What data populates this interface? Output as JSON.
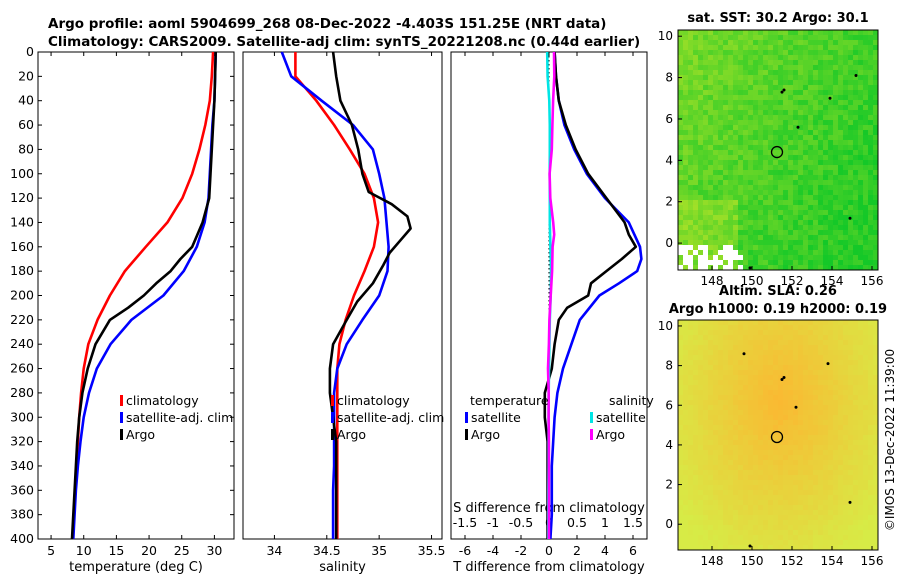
{
  "header": {
    "title_line1": "Argo profile: aoml 5904699_268 08-Dec-2022 -4.403S 151.25E (NRT data)",
    "title_line2": "Climatology: CARS2009. Satellite-adj clim: synTS_20221208.nc (0.44d earlier)"
  },
  "colors": {
    "climatology": "#ff0000",
    "satellite": "#0000ff",
    "argo": "#000000",
    "sal_satellite": "#00e5e5",
    "sal_argo": "#ff00ff"
  },
  "chart_data": [
    {
      "type": "line",
      "id": "temperature",
      "xlabel": "temperature (deg C)",
      "xlim": [
        3,
        33
      ],
      "ylim": [
        400,
        0
      ],
      "xticks": [
        5,
        10,
        15,
        20,
        25,
        30
      ],
      "yticks": [
        0,
        20,
        40,
        60,
        80,
        100,
        120,
        140,
        160,
        180,
        200,
        220,
        240,
        260,
        280,
        300,
        320,
        340,
        360,
        380,
        400
      ],
      "legend": [
        "climatology",
        "satellite-adj. clim",
        "Argo"
      ],
      "series": [
        {
          "name": "climatology",
          "color": "#ff0000",
          "depth": [
            0,
            20,
            40,
            60,
            80,
            100,
            120,
            140,
            160,
            180,
            200,
            220,
            240,
            260,
            280,
            300,
            320,
            340,
            360,
            380,
            400
          ],
          "values": [
            29.8,
            29.6,
            29.3,
            28.6,
            27.7,
            26.6,
            25.1,
            22.8,
            19.5,
            16.3,
            14.0,
            12.1,
            10.7,
            10.0,
            9.6,
            9.3,
            9.1,
            8.9,
            8.7,
            8.5,
            8.3
          ]
        },
        {
          "name": "satellite-adj. clim",
          "color": "#0000ff",
          "depth": [
            0,
            20,
            40,
            60,
            80,
            100,
            120,
            140,
            160,
            180,
            200,
            220,
            240,
            260,
            280,
            300,
            320,
            340,
            360,
            380,
            400
          ],
          "values": [
            30.2,
            30.1,
            30.0,
            29.7,
            29.5,
            29.3,
            29.1,
            28.5,
            27.3,
            25.3,
            22.2,
            17.3,
            14.1,
            12.0,
            10.8,
            10.0,
            9.5,
            9.1,
            8.8,
            8.6,
            8.4
          ]
        },
        {
          "name": "Argo",
          "color": "#000000",
          "depth": [
            0,
            20,
            40,
            60,
            80,
            100,
            120,
            140,
            150,
            160,
            170,
            180,
            190,
            200,
            210,
            220,
            240,
            260,
            280,
            300,
            320,
            340,
            360,
            380,
            400
          ],
          "values": [
            30.2,
            30.1,
            30.0,
            29.8,
            29.6,
            29.4,
            29.2,
            28.2,
            27.4,
            26.6,
            24.8,
            23.3,
            21.1,
            19.2,
            16.8,
            14.0,
            11.8,
            10.6,
            9.8,
            9.3,
            9.0,
            8.8,
            8.6,
            8.4,
            8.2
          ]
        }
      ]
    },
    {
      "type": "line",
      "id": "salinity",
      "xlabel": "salinity",
      "xlim": [
        33.7,
        35.6
      ],
      "ylim": [
        400,
        0
      ],
      "xticks": [
        34,
        34.5,
        35,
        35.5
      ],
      "xticklabels": [
        "34",
        "34.5",
        "35",
        "35.5"
      ],
      "legend": [
        "climatology",
        "satellite-adj. clim",
        "Argo"
      ],
      "series": [
        {
          "name": "climatology",
          "color": "#ff0000",
          "depth": [
            0,
            20,
            40,
            60,
            80,
            100,
            120,
            140,
            160,
            180,
            200,
            220,
            240,
            260,
            280,
            300,
            320,
            340,
            360,
            380,
            400
          ],
          "values": [
            34.2,
            34.2,
            34.4,
            34.57,
            34.72,
            34.86,
            34.95,
            34.99,
            34.95,
            34.86,
            34.76,
            34.68,
            34.62,
            34.6,
            34.6,
            34.6,
            34.6,
            34.6,
            34.6,
            34.6,
            34.6
          ]
        },
        {
          "name": "satellite-adj. clim",
          "color": "#0000ff",
          "depth": [
            0,
            20,
            40,
            60,
            80,
            100,
            120,
            140,
            160,
            180,
            200,
            220,
            240,
            260,
            280,
            300,
            320,
            340,
            360,
            380,
            400
          ],
          "values": [
            34.07,
            34.16,
            34.45,
            34.75,
            34.94,
            35.0,
            35.05,
            35.07,
            35.09,
            35.08,
            35.0,
            34.84,
            34.69,
            34.6,
            34.57,
            34.57,
            34.57,
            34.57,
            34.56,
            34.56,
            34.56
          ]
        },
        {
          "name": "Argo",
          "color": "#000000",
          "depth": [
            0,
            20,
            40,
            60,
            80,
            100,
            115,
            125,
            135,
            145,
            155,
            165,
            175,
            190,
            205,
            220,
            240,
            260,
            280,
            300,
            320,
            340,
            360,
            380,
            400
          ],
          "values": [
            34.56,
            34.59,
            34.63,
            34.74,
            34.8,
            34.84,
            34.9,
            35.12,
            35.27,
            35.3,
            35.2,
            35.1,
            35.04,
            34.94,
            34.79,
            34.69,
            34.56,
            34.53,
            34.53,
            34.56,
            34.59,
            34.59,
            34.59,
            34.59,
            34.59
          ]
        }
      ]
    },
    {
      "type": "line",
      "id": "difference",
      "xlabel": "T difference from climatology",
      "xlabel_top": "S difference from climatology",
      "xlim": [
        -7,
        7
      ],
      "ylim": [
        400,
        0
      ],
      "xticks": [
        -6,
        -4,
        -2,
        0,
        2,
        4,
        6
      ],
      "top_ticklabels": [
        "-1.5",
        "-1",
        "-0.5",
        "0",
        "0.5",
        "1",
        "1.5"
      ],
      "legend_left_title": "temperature",
      "legend_right_title": "salinity",
      "legend": [
        "satellite",
        "Argo",
        "satellite",
        "Argo"
      ],
      "series": [
        {
          "name": "T satellite",
          "color": "#0000ff",
          "depth": [
            0,
            20,
            40,
            60,
            80,
            100,
            120,
            140,
            160,
            170,
            180,
            190,
            200,
            220,
            240,
            260,
            280,
            300,
            320,
            340,
            360,
            380,
            400
          ],
          "values": [
            0.4,
            0.5,
            0.7,
            1.1,
            1.8,
            2.7,
            4.0,
            5.7,
            6.5,
            6.6,
            6.3,
            5.0,
            3.6,
            2.2,
            1.6,
            1.0,
            0.6,
            0.4,
            0.3,
            0.2,
            0.2,
            0.2,
            0.1
          ]
        },
        {
          "name": "T Argo",
          "color": "#000000",
          "depth": [
            0,
            20,
            40,
            60,
            80,
            100,
            120,
            140,
            150,
            160,
            170,
            180,
            190,
            200,
            210,
            220,
            240,
            260,
            280,
            300,
            320,
            340,
            360,
            380,
            400
          ],
          "values": [
            0.4,
            0.5,
            0.7,
            1.2,
            1.9,
            2.8,
            4.1,
            5.4,
            5.7,
            6.2,
            5.2,
            4.1,
            3.0,
            2.8,
            1.3,
            0.7,
            0.4,
            0.2,
            -0.3,
            -0.3,
            -0.1,
            -0.1,
            -0.1,
            -0.1,
            -0.1
          ]
        },
        {
          "name": "S satellite",
          "color": "#00e5e5",
          "depth": [
            0,
            20,
            40,
            60,
            80,
            100,
            120,
            140,
            160,
            180,
            200,
            220,
            240,
            260,
            280,
            300,
            320,
            340,
            360,
            380,
            400
          ],
          "values": [
            -0.13,
            -0.1,
            0.02,
            0.06,
            0.06,
            0.05,
            0.06,
            0.06,
            0.1,
            0.14,
            0.12,
            0.06,
            0.03,
            0.0,
            -0.02,
            -0.03,
            -0.03,
            -0.03,
            -0.04,
            -0.04,
            -0.04
          ]
        },
        {
          "name": "S Argo",
          "color": "#ff00ff",
          "depth": [
            0,
            20,
            40,
            60,
            80,
            100,
            120,
            140,
            150,
            160,
            180,
            200,
            220,
            240,
            260,
            280,
            300,
            320,
            340,
            360,
            380,
            400
          ],
          "values": [
            0.36,
            0.38,
            0.29,
            0.24,
            0.2,
            0.04,
            0.09,
            0.3,
            0.37,
            0.26,
            0.22,
            0.12,
            0.03,
            -0.01,
            -0.07,
            -0.02,
            -0.03,
            -0.01,
            -0.01,
            -0.01,
            -0.01,
            -0.01
          ]
        }
      ]
    },
    {
      "type": "heatmap",
      "id": "sst_map",
      "title": "sat. SST: 30.2 Argo: 30.1",
      "xticks": [
        148,
        150,
        152,
        154,
        156
      ],
      "yticks": [
        10,
        8,
        6,
        4,
        2,
        0
      ],
      "xlim": [
        146.3,
        156.3
      ],
      "ylim": [
        -1.3,
        10.3
      ],
      "marker": {
        "lon": 151.25,
        "lat": 4.4
      }
    },
    {
      "type": "heatmap",
      "id": "sla_map",
      "title": "Altim. SLA: 0.26",
      "subtitle": "Argo h1000: 0.19 h2000: 0.19",
      "xticks": [
        148,
        150,
        152,
        154,
        156
      ],
      "yticks": [
        10,
        8,
        6,
        4,
        2,
        0
      ],
      "xlim": [
        146.3,
        156.3
      ],
      "ylim": [
        -1.3,
        10.3
      ],
      "marker": {
        "lon": 151.25,
        "lat": 4.4
      }
    }
  ],
  "footer": {
    "credit": "©IMOS 13-Dec-2022 11:39:00"
  }
}
